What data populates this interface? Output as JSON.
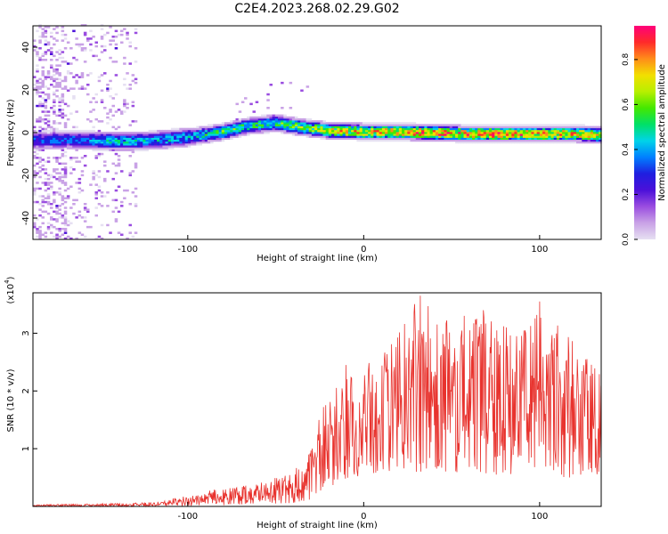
{
  "figure_title": "C2E4.2023.268.02.29.G02",
  "chart_data": [
    {
      "type": "heatmap",
      "xlabel": "Height of straight line (km)",
      "ylabel": "Frequency (Hz)",
      "xlim": [
        -188,
        135
      ],
      "ylim": [
        -50,
        50
      ],
      "xticks": [
        -100,
        0,
        100
      ],
      "yticks": [
        -40,
        -20,
        0,
        20,
        40
      ],
      "grid": false,
      "colorbar": {
        "label": "Normalized spectral amplitude",
        "range": [
          0.0,
          0.95
        ],
        "ticks": [
          0.0,
          0.2,
          0.4,
          0.6,
          0.8
        ],
        "tick_labels": [
          "0.0",
          "0.2",
          "0.4",
          "0.6",
          "0.8"
        ],
        "colormap": [
          "#e6e0f2",
          "#c9a2e6",
          "#9a4de0",
          "#4b10d9",
          "#1f1fe0",
          "#0080ff",
          "#00d4e8",
          "#00e068",
          "#44e800",
          "#b8ef00",
          "#f2df00",
          "#ff8c1a",
          "#ff2a2a",
          "#ff007a"
        ]
      },
      "ridge": [
        {
          "x": -188,
          "freq": -4.0,
          "amp": 0.35
        },
        {
          "x": -160,
          "freq": -4.0,
          "amp": 0.4
        },
        {
          "x": -135,
          "freq": -4.5,
          "amp": 0.55
        },
        {
          "x": -120,
          "freq": -4.0,
          "amp": 0.45
        },
        {
          "x": -100,
          "freq": -2.5,
          "amp": 0.5
        },
        {
          "x": -80,
          "freq": 0.0,
          "amp": 0.6
        },
        {
          "x": -65,
          "freq": 3.0,
          "amp": 0.55
        },
        {
          "x": -50,
          "freq": 4.0,
          "amp": 0.6
        },
        {
          "x": -35,
          "freq": 2.0,
          "amp": 0.65
        },
        {
          "x": -20,
          "freq": 0.5,
          "amp": 0.75
        },
        {
          "x": 0,
          "freq": 0.0,
          "amp": 0.85
        },
        {
          "x": 20,
          "freq": 0.0,
          "amp": 0.9
        },
        {
          "x": 40,
          "freq": -0.5,
          "amp": 0.9
        },
        {
          "x": 60,
          "freq": -1.0,
          "amp": 0.9
        },
        {
          "x": 80,
          "freq": -1.0,
          "amp": 0.9
        },
        {
          "x": 100,
          "freq": -1.0,
          "amp": 0.85
        },
        {
          "x": 120,
          "freq": -1.0,
          "amp": 0.85
        },
        {
          "x": 135,
          "freq": -1.5,
          "amp": 0.8
        }
      ]
    },
    {
      "type": "line",
      "xlabel": "Height of straight line (km)",
      "ylabel": "SNR (10 * v/v)",
      "y_multiplier_label": "(x10^4)",
      "xlim": [
        -188,
        135
      ],
      "ylim": [
        0,
        3.7
      ],
      "xticks": [
        -100,
        0,
        100
      ],
      "yticks": [
        1,
        2,
        3
      ],
      "grid": false,
      "line_color": "#e8332e",
      "envelope": [
        {
          "x": -188,
          "low": 0.0,
          "high": 0.03
        },
        {
          "x": -160,
          "low": 0.0,
          "high": 0.04
        },
        {
          "x": -130,
          "low": 0.0,
          "high": 0.06
        },
        {
          "x": -115,
          "low": 0.0,
          "high": 0.09
        },
        {
          "x": -100,
          "low": 0.01,
          "high": 0.2
        },
        {
          "x": -80,
          "low": 0.02,
          "high": 0.32
        },
        {
          "x": -60,
          "low": 0.04,
          "high": 0.4
        },
        {
          "x": -40,
          "low": 0.06,
          "high": 0.6
        },
        {
          "x": -30,
          "low": 0.12,
          "high": 1.0
        },
        {
          "x": -22,
          "low": 0.3,
          "high": 1.9
        },
        {
          "x": -10,
          "low": 0.45,
          "high": 2.2
        },
        {
          "x": 0,
          "low": 0.55,
          "high": 2.5
        },
        {
          "x": 15,
          "low": 0.55,
          "high": 2.8
        },
        {
          "x": 30,
          "low": 0.6,
          "high": 3.7
        },
        {
          "x": 50,
          "low": 0.6,
          "high": 3.2
        },
        {
          "x": 70,
          "low": 0.55,
          "high": 3.3
        },
        {
          "x": 90,
          "low": 0.55,
          "high": 3.0
        },
        {
          "x": 100,
          "low": 0.6,
          "high": 3.5
        },
        {
          "x": 115,
          "low": 0.5,
          "high": 3.0
        },
        {
          "x": 135,
          "low": 0.5,
          "high": 2.5
        }
      ],
      "peaks": [
        {
          "x": 32,
          "y": 3.65
        },
        {
          "x": 100,
          "y": 3.55
        },
        {
          "x": 68,
          "y": 3.4
        },
        {
          "x": 57,
          "y": 3.3
        },
        {
          "x": 81,
          "y": 3.1
        },
        {
          "x": -10,
          "y": 2.45
        }
      ]
    }
  ]
}
